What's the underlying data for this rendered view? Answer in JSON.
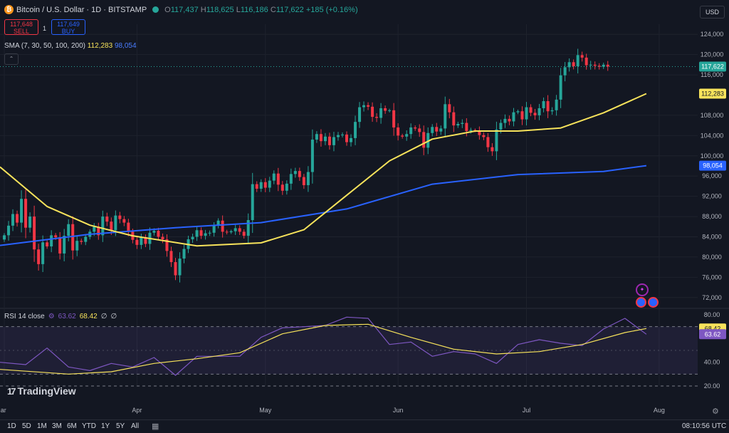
{
  "header": {
    "symbol": "Bitcoin / U.S. Dollar · 1D · BITSTAMP",
    "icon": "bitcoin-icon",
    "ohlc": [
      {
        "k": "O",
        "v": "117,437"
      },
      {
        "k": "H",
        "v": "118,625"
      },
      {
        "k": "L",
        "v": "116,186"
      },
      {
        "k": "C",
        "v": "117,622"
      }
    ],
    "change": "+185 (+0.16%)",
    "sell_price": "117,648",
    "sell_label": "SELL",
    "spread": "1",
    "buy_price": "117,649",
    "buy_label": "BUY",
    "currency": "USD"
  },
  "sma_legend": {
    "label": "SMA (7, 30, 50, 100, 200)",
    "value_yellow": "112,283",
    "value_blue": "98,054"
  },
  "rsi_legend": {
    "label": "RSI 14 close",
    "rsi": "63.62",
    "ma": "68.42",
    "na1": "∅",
    "na2": "∅"
  },
  "colors": {
    "background": "#131722",
    "up": "#26a69a",
    "down": "#f23645",
    "sma_yellow": "#f7e35b",
    "sma_blue": "#2962ff",
    "rsi": "#7e57c2"
  },
  "bottom": {
    "ranges": [
      "1D",
      "5D",
      "1M",
      "3M",
      "6M",
      "YTD",
      "1Y",
      "5Y",
      "All"
    ],
    "time": "08:10:56 UTC",
    "watermark": "TradingView"
  },
  "chart_data": [
    {
      "type": "candlestick",
      "title": "Bitcoin / U.S. Dollar · 1D · BITSTAMP",
      "ylim": [
        70000,
        126000
      ],
      "y_ticks": [
        "72,000",
        "76,000",
        "80,000",
        "84,000",
        "88,000",
        "92,000",
        "96,000",
        "100,000",
        "104,000",
        "108,000",
        "116,000",
        "120,000",
        "124,000"
      ],
      "x_ticks": [
        "Mar",
        "Apr",
        "May",
        "Jun",
        "Jul",
        "Aug"
      ],
      "x_range_days": [
        -1,
        162
      ],
      "price_labels": {
        "last": "117,622",
        "sma_yellow": "112,283",
        "sma_blue": "98,054"
      },
      "candles_close": [
        84300,
        86200,
        88500,
        86800,
        91500,
        85800,
        88000,
        81500,
        78600,
        82900,
        82100,
        84300,
        83900,
        80700,
        84200,
        86500,
        81300,
        83200,
        83000,
        84000,
        85000,
        86000,
        84300,
        88000,
        87000,
        85300,
        88200,
        87500,
        86800,
        85000,
        83400,
        82400,
        83900,
        82600,
        84800,
        85200,
        84000,
        83500,
        81200,
        79000,
        76400,
        79700,
        81600,
        83500,
        84000,
        85300,
        84200,
        84700,
        84800,
        86200,
        87200,
        85000,
        84900,
        85100,
        85700,
        85000,
        84200,
        87300,
        94400,
        93500,
        94800,
        93700,
        95100,
        96500,
        94300,
        93100,
        94500,
        96400,
        97000,
        95800,
        94200,
        96800,
        103200,
        104300,
        102900,
        103800,
        102100,
        103700,
        104100,
        104200,
        102700,
        103500,
        106700,
        109600,
        110000,
        109700,
        107700,
        107500,
        109400,
        108900,
        109000,
        105600,
        104000,
        103800,
        104300,
        105600,
        105400,
        104700,
        101600,
        104500,
        105700,
        104800,
        105400,
        110200,
        108600,
        106000,
        106300,
        106500,
        104900,
        105100,
        105000,
        104100,
        103700,
        101700,
        100900,
        105200,
        106500,
        107300,
        106800,
        108600,
        108800,
        107200,
        109600,
        108500,
        108000,
        109400,
        110800,
        108800,
        109000,
        111100,
        115900,
        117500,
        118500,
        117700,
        119900,
        119400,
        117900,
        118000,
        117800,
        117600,
        118000,
        117622
      ],
      "sma_yellow_points": [
        [
          -1,
          97800
        ],
        [
          10,
          90000
        ],
        [
          20,
          86300
        ],
        [
          30,
          84200
        ],
        [
          45,
          82200
        ],
        [
          60,
          82800
        ],
        [
          70,
          85400
        ],
        [
          80,
          92200
        ],
        [
          90,
          99000
        ],
        [
          100,
          103300
        ],
        [
          110,
          104900
        ],
        [
          120,
          104900
        ],
        [
          130,
          105500
        ],
        [
          140,
          108500
        ],
        [
          150,
          112283
        ]
      ],
      "sma_blue_points": [
        [
          -1,
          82300
        ],
        [
          20,
          84500
        ],
        [
          40,
          85800
        ],
        [
          60,
          86800
        ],
        [
          80,
          89500
        ],
        [
          100,
          94400
        ],
        [
          120,
          96300
        ],
        [
          140,
          96900
        ],
        [
          150,
          98054
        ]
      ]
    },
    {
      "type": "line",
      "title": "RSI 14 close",
      "ylim": [
        20,
        80
      ],
      "y_ticks": [
        "20.00",
        "40.00",
        "80.00"
      ],
      "levels": [
        70,
        30
      ],
      "rsi_points": [
        [
          -1,
          40
        ],
        [
          5,
          38
        ],
        [
          10,
          52
        ],
        [
          15,
          36
        ],
        [
          20,
          33
        ],
        [
          25,
          39
        ],
        [
          30,
          36
        ],
        [
          35,
          44
        ],
        [
          40,
          29
        ],
        [
          45,
          45
        ],
        [
          50,
          45
        ],
        [
          55,
          45
        ],
        [
          60,
          61
        ],
        [
          65,
          69
        ],
        [
          70,
          70
        ],
        [
          75,
          71
        ],
        [
          80,
          78
        ],
        [
          85,
          77
        ],
        [
          90,
          55
        ],
        [
          95,
          57
        ],
        [
          100,
          45
        ],
        [
          105,
          49
        ],
        [
          110,
          47
        ],
        [
          115,
          39
        ],
        [
          120,
          55
        ],
        [
          125,
          59
        ],
        [
          130,
          56
        ],
        [
          135,
          54
        ],
        [
          140,
          68
        ],
        [
          145,
          77
        ],
        [
          150,
          63.62
        ]
      ],
      "ma_points": [
        [
          -1,
          34
        ],
        [
          15,
          30
        ],
        [
          25,
          32
        ],
        [
          35,
          39
        ],
        [
          45,
          43
        ],
        [
          55,
          48
        ],
        [
          65,
          64
        ],
        [
          75,
          71
        ],
        [
          85,
          72
        ],
        [
          95,
          61
        ],
        [
          105,
          51
        ],
        [
          115,
          47
        ],
        [
          125,
          49
        ],
        [
          135,
          55
        ],
        [
          145,
          65
        ],
        [
          150,
          68.42
        ]
      ],
      "value_labels": {
        "ma": "68.42",
        "rsi": "63.62"
      }
    }
  ]
}
